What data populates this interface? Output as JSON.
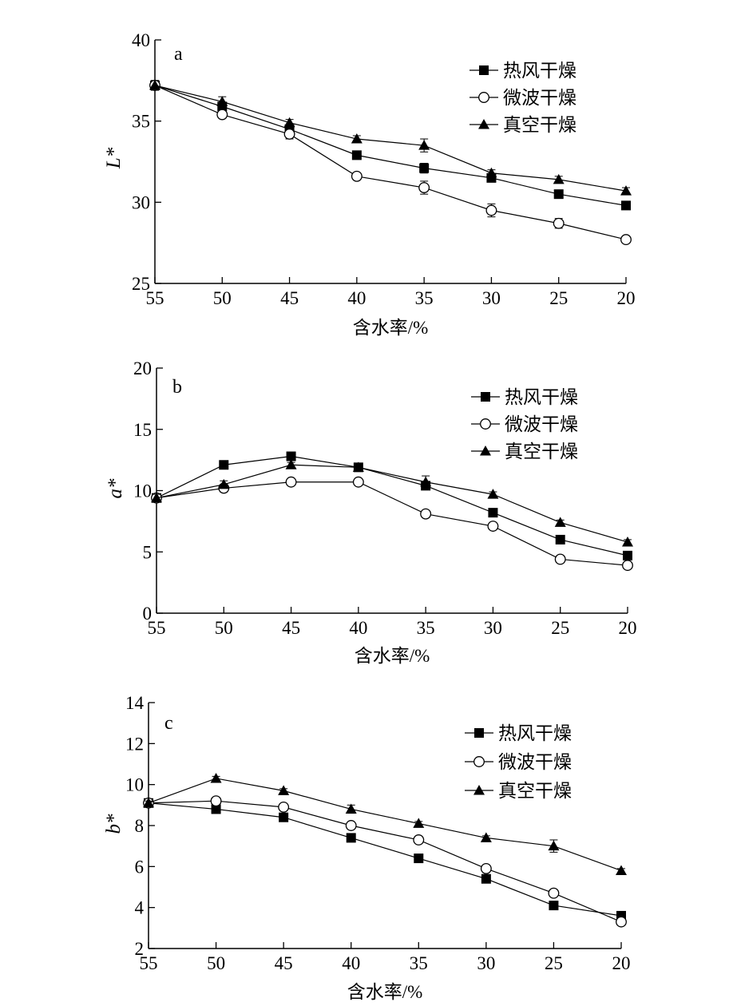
{
  "chart_data": [
    {
      "type": "line",
      "panel_label": "a",
      "xlabel": "含水率/%",
      "ylabel": "L*",
      "x": [
        55,
        50,
        45,
        40,
        35,
        30,
        25,
        20
      ],
      "xlim": [
        55,
        20
      ],
      "ylim": [
        25,
        40
      ],
      "yticks": [
        25,
        30,
        35,
        40
      ],
      "legend_position": "top-right",
      "series": [
        {
          "name": "热风干燥",
          "marker": "square-filled",
          "values": [
            37.2,
            35.9,
            34.5,
            32.9,
            32.1,
            31.5,
            30.5,
            29.8
          ],
          "errors": [
            0.2,
            0.2,
            0.2,
            0.2,
            0.3,
            0.2,
            0.2,
            0.2
          ]
        },
        {
          "name": "微波干燥",
          "marker": "circle-open",
          "values": [
            37.2,
            35.4,
            34.2,
            31.6,
            30.9,
            29.5,
            28.7,
            27.7
          ],
          "errors": [
            0.3,
            0.2,
            0.3,
            0.2,
            0.4,
            0.4,
            0.3,
            0.2
          ]
        },
        {
          "name": "真空干燥",
          "marker": "triangle-filled",
          "values": [
            37.2,
            36.2,
            34.9,
            33.9,
            33.5,
            31.8,
            31.4,
            30.7
          ],
          "errors": [
            0.3,
            0.3,
            0.2,
            0.2,
            0.4,
            0.2,
            0.2,
            0.2
          ]
        }
      ]
    },
    {
      "type": "line",
      "panel_label": "b",
      "xlabel": "含水率/%",
      "ylabel": "a*",
      "x": [
        55,
        50,
        45,
        40,
        35,
        30,
        25,
        20
      ],
      "xlim": [
        55,
        20
      ],
      "ylim": [
        0,
        20
      ],
      "yticks": [
        0,
        5,
        10,
        15,
        20
      ],
      "legend_position": "top-right",
      "series": [
        {
          "name": "热风干燥",
          "marker": "square-filled",
          "values": [
            9.4,
            12.1,
            12.8,
            11.9,
            10.4,
            8.2,
            6.0,
            4.7
          ],
          "errors": [
            0.3,
            0.2,
            0.2,
            0.2,
            0.3,
            0.2,
            0.2,
            0.2
          ]
        },
        {
          "name": "微波干燥",
          "marker": "circle-open",
          "values": [
            9.4,
            10.2,
            10.7,
            10.7,
            8.1,
            7.1,
            4.4,
            3.9
          ],
          "errors": [
            0.3,
            0.3,
            0.2,
            0.2,
            0.2,
            0.2,
            0.2,
            0.2
          ]
        },
        {
          "name": "真空干燥",
          "marker": "triangle-filled",
          "values": [
            9.4,
            10.5,
            12.1,
            11.9,
            10.7,
            9.7,
            7.4,
            5.8
          ],
          "errors": [
            0.3,
            0.3,
            0.2,
            0.2,
            0.5,
            0.2,
            0.2,
            0.2
          ]
        }
      ]
    },
    {
      "type": "line",
      "panel_label": "c",
      "xlabel": "含水率/%",
      "ylabel": "b*",
      "x": [
        55,
        50,
        45,
        40,
        35,
        30,
        25,
        20
      ],
      "xlim": [
        55,
        20
      ],
      "ylim": [
        2,
        14
      ],
      "yticks": [
        2,
        4,
        6,
        8,
        10,
        12,
        14
      ],
      "legend_position": "top-right",
      "series": [
        {
          "name": "热风干燥",
          "marker": "square-filled",
          "values": [
            9.1,
            8.8,
            8.4,
            7.4,
            6.4,
            5.4,
            4.1,
            3.6
          ],
          "errors": [
            0.1,
            0.1,
            0.1,
            0.1,
            0.1,
            0.2,
            0.1,
            0.1
          ]
        },
        {
          "name": "微波干燥",
          "marker": "circle-open",
          "values": [
            9.1,
            9.2,
            8.9,
            8.0,
            7.3,
            5.9,
            4.7,
            3.3
          ],
          "errors": [
            0.1,
            0.1,
            0.1,
            0.1,
            0.1,
            0.1,
            0.1,
            0.1
          ]
        },
        {
          "name": "真空干燥",
          "marker": "triangle-filled",
          "values": [
            9.1,
            10.3,
            9.7,
            8.8,
            8.1,
            7.4,
            7.0,
            5.8
          ],
          "errors": [
            0.1,
            0.1,
            0.1,
            0.2,
            0.1,
            0.1,
            0.3,
            0.1
          ]
        }
      ]
    }
  ]
}
